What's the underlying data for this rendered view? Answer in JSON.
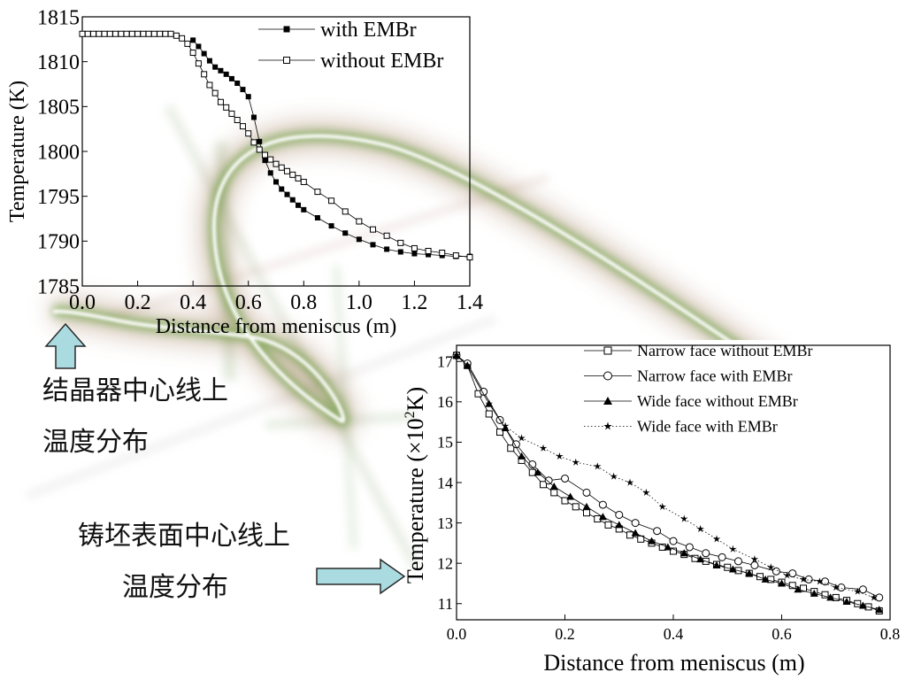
{
  "chart_data": [
    {
      "type": "line",
      "xlabel": "Distance from meniscus (m)",
      "ylabel": "Temperature (K)",
      "xlim": [
        0.0,
        1.4
      ],
      "ylim": [
        1785,
        1815
      ],
      "x_ticks": [
        "0.0",
        "0.2",
        "0.4",
        "0.6",
        "0.8",
        "1.0",
        "1.2",
        "1.4"
      ],
      "y_ticks": [
        "1785",
        "1790",
        "1795",
        "1800",
        "1805",
        "1810",
        "1815"
      ],
      "legend_position": "top-right",
      "grid": false,
      "series": [
        {
          "name": "with EMBr",
          "marker": "filled-square",
          "x": [
            0.4,
            0.42,
            0.44,
            0.46,
            0.48,
            0.5,
            0.52,
            0.54,
            0.56,
            0.58,
            0.6,
            0.62,
            0.64,
            0.66,
            0.68,
            0.7,
            0.72,
            0.74,
            0.76,
            0.78,
            0.8,
            0.85,
            0.9,
            0.95,
            1.0,
            1.05,
            1.1,
            1.15,
            1.2,
            1.25,
            1.3,
            1.35,
            1.4
          ],
          "y": [
            1812.4,
            1811.7,
            1810.9,
            1810.1,
            1809.4,
            1809.0,
            1808.6,
            1808.1,
            1807.6,
            1806.9,
            1806.1,
            1803.8,
            1801.1,
            1799.0,
            1797.6,
            1796.6,
            1795.8,
            1795.2,
            1794.6,
            1794.0,
            1793.5,
            1792.6,
            1791.7,
            1790.9,
            1790.2,
            1789.6,
            1789.1,
            1788.8,
            1788.6,
            1788.5,
            1788.4,
            1788.3,
            1788.3
          ]
        },
        {
          "name": "without EMBr",
          "marker": "open-square",
          "x": [
            0.0,
            0.02,
            0.04,
            0.06,
            0.08,
            0.1,
            0.12,
            0.14,
            0.16,
            0.18,
            0.2,
            0.22,
            0.24,
            0.26,
            0.28,
            0.3,
            0.32,
            0.34,
            0.36,
            0.38,
            0.4,
            0.42,
            0.44,
            0.46,
            0.48,
            0.5,
            0.52,
            0.54,
            0.56,
            0.58,
            0.6,
            0.62,
            0.64,
            0.66,
            0.68,
            0.7,
            0.72,
            0.74,
            0.76,
            0.78,
            0.8,
            0.85,
            0.9,
            0.95,
            1.0,
            1.05,
            1.1,
            1.15,
            1.2,
            1.25,
            1.3,
            1.35,
            1.4
          ],
          "y": [
            1813.1,
            1813.1,
            1813.1,
            1813.1,
            1813.1,
            1813.1,
            1813.1,
            1813.1,
            1813.1,
            1813.1,
            1813.1,
            1813.1,
            1813.1,
            1813.1,
            1813.1,
            1813.1,
            1813.1,
            1812.9,
            1812.6,
            1812.0,
            1811.0,
            1809.8,
            1808.6,
            1807.4,
            1806.5,
            1805.5,
            1804.9,
            1804.2,
            1803.5,
            1802.8,
            1802.0,
            1801.0,
            1800.2,
            1799.6,
            1799.1,
            1798.6,
            1798.2,
            1797.8,
            1797.4,
            1797.0,
            1796.6,
            1795.5,
            1794.5,
            1793.3,
            1792.2,
            1791.3,
            1790.6,
            1789.8,
            1789.2,
            1788.9,
            1788.7,
            1788.4,
            1788.2
          ]
        }
      ]
    },
    {
      "type": "line",
      "xlabel": "Distance from meniscus (m)",
      "ylabel": "Temperature (×10²K)",
      "ylabel_parts": [
        "Temperature (",
        "×",
        "10",
        "2",
        "K)"
      ],
      "xlim": [
        0.0,
        0.8
      ],
      "ylim": [
        10.6,
        17.4
      ],
      "x_ticks": [
        "0.0",
        "0.2",
        "0.4",
        "0.6",
        "0.8"
      ],
      "y_ticks": [
        "11",
        "12",
        "13",
        "14",
        "15",
        "16",
        "17"
      ],
      "legend_position": "top-right",
      "grid": false,
      "series": [
        {
          "name": "Narrow face without EMBr",
          "marker": "open-square",
          "line": "solid",
          "x": [
            0.0,
            0.02,
            0.04,
            0.06,
            0.08,
            0.1,
            0.12,
            0.14,
            0.16,
            0.18,
            0.2,
            0.22,
            0.24,
            0.26,
            0.28,
            0.3,
            0.32,
            0.34,
            0.36,
            0.38,
            0.4,
            0.42,
            0.44,
            0.46,
            0.48,
            0.5,
            0.52,
            0.54,
            0.56,
            0.58,
            0.6,
            0.62,
            0.64,
            0.66,
            0.68,
            0.7,
            0.72,
            0.74,
            0.76,
            0.78
          ],
          "y": [
            17.15,
            16.9,
            16.2,
            15.7,
            15.25,
            14.85,
            14.55,
            14.25,
            13.95,
            13.75,
            13.55,
            13.4,
            13.25,
            13.1,
            12.95,
            12.85,
            12.7,
            12.6,
            12.5,
            12.4,
            12.3,
            12.22,
            12.12,
            12.05,
            11.97,
            11.9,
            11.82,
            11.75,
            11.67,
            11.6,
            11.53,
            11.45,
            11.38,
            11.3,
            11.22,
            11.15,
            11.08,
            11.0,
            10.92,
            10.82
          ]
        },
        {
          "name": "Narrow face with EMBr",
          "marker": "open-circle",
          "line": "solid",
          "x": [
            0.0,
            0.02,
            0.05,
            0.08,
            0.11,
            0.14,
            0.17,
            0.2,
            0.24,
            0.27,
            0.3,
            0.33,
            0.37,
            0.4,
            0.43,
            0.46,
            0.49,
            0.52,
            0.55,
            0.59,
            0.62,
            0.65,
            0.68,
            0.71,
            0.75,
            0.78
          ],
          "y": [
            17.15,
            16.95,
            16.25,
            15.55,
            14.95,
            14.45,
            14.05,
            14.1,
            13.75,
            13.45,
            13.2,
            13.0,
            12.8,
            12.55,
            12.4,
            12.25,
            12.15,
            12.05,
            11.95,
            11.8,
            11.75,
            11.6,
            11.55,
            11.4,
            11.35,
            11.15
          ]
        },
        {
          "name": "Wide face without EMBr",
          "marker": "filled-triangle",
          "line": "solid",
          "x": [
            0.0,
            0.02,
            0.06,
            0.09,
            0.12,
            0.15,
            0.18,
            0.21,
            0.24,
            0.27,
            0.3,
            0.33,
            0.36,
            0.39,
            0.42,
            0.45,
            0.48,
            0.51,
            0.54,
            0.57,
            0.6,
            0.63,
            0.66,
            0.69,
            0.72,
            0.75,
            0.78
          ],
          "y": [
            17.15,
            16.9,
            15.95,
            15.35,
            14.65,
            14.25,
            13.9,
            13.65,
            13.4,
            13.15,
            12.95,
            12.75,
            12.55,
            12.4,
            12.25,
            12.1,
            11.95,
            11.85,
            11.75,
            11.6,
            11.5,
            11.35,
            11.25,
            11.15,
            11.05,
            10.95,
            10.85
          ]
        },
        {
          "name": "Wide face with EMBr",
          "marker": "star",
          "line": "dotted",
          "x": [
            0.0,
            0.02,
            0.06,
            0.09,
            0.12,
            0.16,
            0.19,
            0.22,
            0.26,
            0.29,
            0.32,
            0.35,
            0.38,
            0.42,
            0.45,
            0.48,
            0.51,
            0.55,
            0.58,
            0.61,
            0.64,
            0.67,
            0.7,
            0.74,
            0.77
          ],
          "y": [
            17.15,
            16.9,
            15.95,
            15.4,
            15.1,
            14.85,
            14.65,
            14.5,
            14.4,
            14.15,
            14.0,
            13.75,
            13.4,
            13.1,
            12.85,
            12.6,
            12.35,
            12.1,
            11.9,
            11.7,
            11.6,
            11.55,
            11.4,
            11.3,
            11.15
          ]
        }
      ]
    }
  ],
  "annotations": {
    "mold_line_1": "结晶器中心线上",
    "mold_line_2": "温度分布",
    "strand_line_1": "铸坯表面中心线上",
    "strand_line_2": "温度分布"
  },
  "colors": {
    "series": "#000000",
    "arrow_fill": "#a9dbe0",
    "arrow_stroke": "#2a2a2a"
  }
}
